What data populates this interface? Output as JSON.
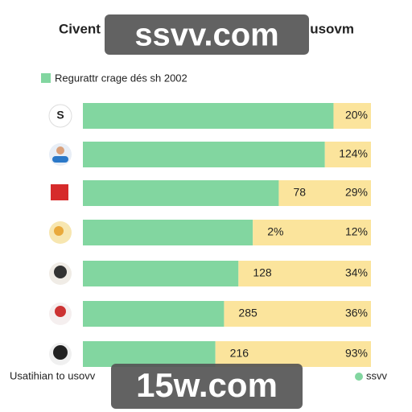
{
  "chart_data": {
    "type": "bar",
    "orientation": "horizontal",
    "stacked": true,
    "title_left": "Civent",
    "title_right": "usovm",
    "series": [
      {
        "name": "Regurattr crage dés sh 2002",
        "color": "#82d6a0",
        "values": [
          87,
          84,
          68,
          59,
          54,
          49,
          46
        ]
      },
      {
        "color": "#fbe49c",
        "values": [
          13,
          16,
          32,
          41,
          46,
          51,
          54
        ]
      }
    ],
    "xlim": [
      0,
      100
    ],
    "inner_labels": [
      null,
      null,
      "78",
      "2%",
      "128",
      "285",
      "216"
    ],
    "end_labels": [
      "20%",
      "124%",
      "29%",
      "12%",
      "34%",
      "36%",
      "93%"
    ],
    "footer_note": "Usatihian to usovv",
    "footer_legend": "ssvv",
    "watermarks": [
      "ssvv.com",
      "15w.com"
    ]
  }
}
